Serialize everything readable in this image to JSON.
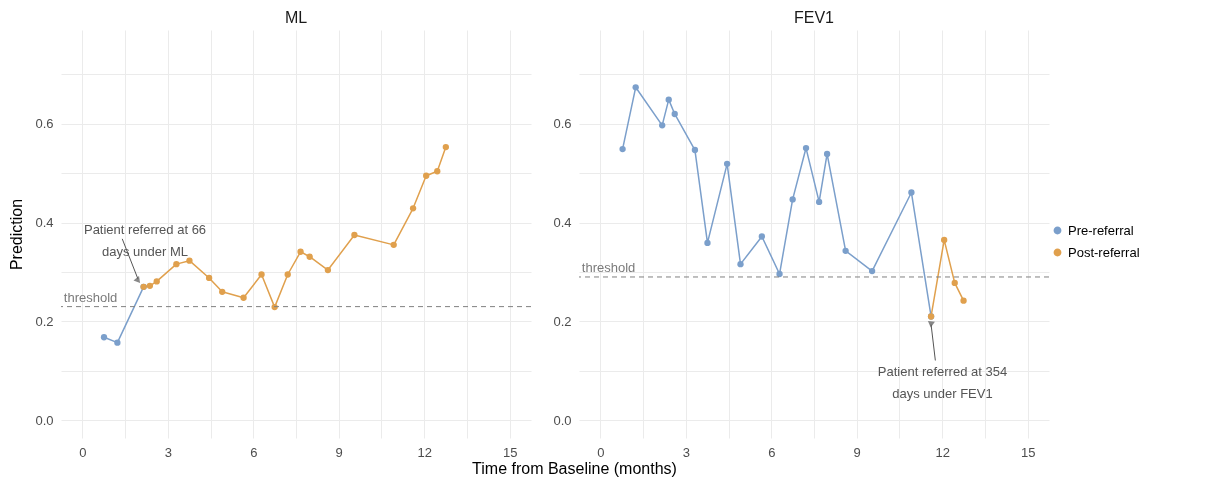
{
  "chart_data": [
    {
      "type": "line",
      "title": "ML",
      "xlabel": "Time from Baseline (months)",
      "ylabel": "Prediction",
      "xlim": [
        -0.75,
        15.75
      ],
      "ylim": [
        -0.036,
        0.79
      ],
      "xticks": [
        0,
        {
          "value": 1.5,
          "label": null
        },
        3,
        {
          "value": 4.5,
          "label": null
        },
        6,
        {
          "value": 7.5,
          "label": null
        },
        9,
        {
          "value": 10.5,
          "label": null
        },
        12,
        {
          "value": 13.5,
          "label": null
        },
        15
      ],
      "yticks": [
        {
          "value": 0,
          "label": "0.0"
        },
        {
          "value": 0.1,
          "label": null
        },
        0.2,
        {
          "value": 0.3,
          "label": null
        },
        0.4,
        {
          "value": 0.5,
          "label": null
        },
        0.6,
        {
          "value": 0.7,
          "label": null
        }
      ],
      "grid": true,
      "legend": "right",
      "marker": "circle",
      "line_style": "solid",
      "series": [
        {
          "name": "Pre-referral",
          "color": "#7b9fcb",
          "x": [
            0.76,
            1.23,
            2.15
          ],
          "values": [
            0.168,
            0.157,
            0.27
          ]
        },
        {
          "name": "Post-referral",
          "color": "#e0a04d",
          "x": [
            2.15,
            2.37,
            2.61,
            3.3,
            3.76,
            4.45,
            4.91,
            5.66,
            6.29,
            6.75,
            7.21,
            7.66,
            7.98,
            8.62,
            9.55,
            10.93,
            11.61,
            12.07,
            12.46,
            12.76
          ],
          "values": [
            0.27,
            0.272,
            0.281,
            0.316,
            0.323,
            0.288,
            0.26,
            0.248,
            0.295,
            0.229,
            0.295,
            0.341,
            0.331,
            0.304,
            0.375,
            0.355,
            0.429,
            0.495,
            0.504,
            0.553
          ]
        }
      ],
      "ref_lines": [
        {
          "axis": "y",
          "value": 0.23,
          "label": "threshold",
          "color": "#808080",
          "line_style": "dashed"
        }
      ],
      "annotations": [
        {
          "text": "Patient referred at 66\ndays under ML",
          "x": 2.15,
          "y": 0.27
        }
      ]
    },
    {
      "type": "line",
      "title": "FEV1",
      "xlim": [
        -0.75,
        15.75
      ],
      "ylim": [
        -0.036,
        0.79
      ],
      "xticks": [
        0,
        {
          "value": 1.5,
          "label": null
        },
        3,
        {
          "value": 4.5,
          "label": null
        },
        6,
        {
          "value": 7.5,
          "label": null
        },
        9,
        {
          "value": 10.5,
          "label": null
        },
        12,
        {
          "value": 13.5,
          "label": null
        },
        15
      ],
      "yticks": [
        {
          "value": 0,
          "label": "0.0"
        },
        {
          "value": 0.1,
          "label": null
        },
        0.2,
        {
          "value": 0.3,
          "label": null
        },
        0.4,
        {
          "value": 0.5,
          "label": null
        },
        0.6,
        {
          "value": 0.7,
          "label": null
        }
      ],
      "grid": true,
      "marker": "circle",
      "line_style": "solid",
      "series": [
        {
          "name": "Pre-referral",
          "color": "#7b9fcb",
          "x": [
            0.78,
            1.24,
            2.17,
            2.4,
            2.61,
            3.32,
            3.76,
            4.45,
            4.92,
            5.67,
            6.29,
            6.75,
            7.22,
            7.68,
            7.96,
            8.61,
            9.54,
            10.92,
            11.61
          ],
          "values": [
            0.549,
            0.674,
            0.597,
            0.649,
            0.62,
            0.547,
            0.359,
            0.519,
            0.316,
            0.372,
            0.296,
            0.447,
            0.551,
            0.442,
            0.539,
            0.343,
            0.302,
            0.461,
            0.21
          ]
        },
        {
          "name": "Post-referral",
          "color": "#e0a04d",
          "x": [
            11.61,
            12.07,
            12.44,
            12.75
          ],
          "values": [
            0.21,
            0.365,
            0.278,
            0.242
          ]
        }
      ],
      "ref_lines": [
        {
          "axis": "y",
          "value": 0.29,
          "label": "threshold",
          "color": "#808080",
          "line_style": "dashed"
        }
      ],
      "annotations": [
        {
          "text": "Patient referred at 354\ndays under FEV1",
          "x": 11.61,
          "y": 0.21
        }
      ]
    }
  ]
}
